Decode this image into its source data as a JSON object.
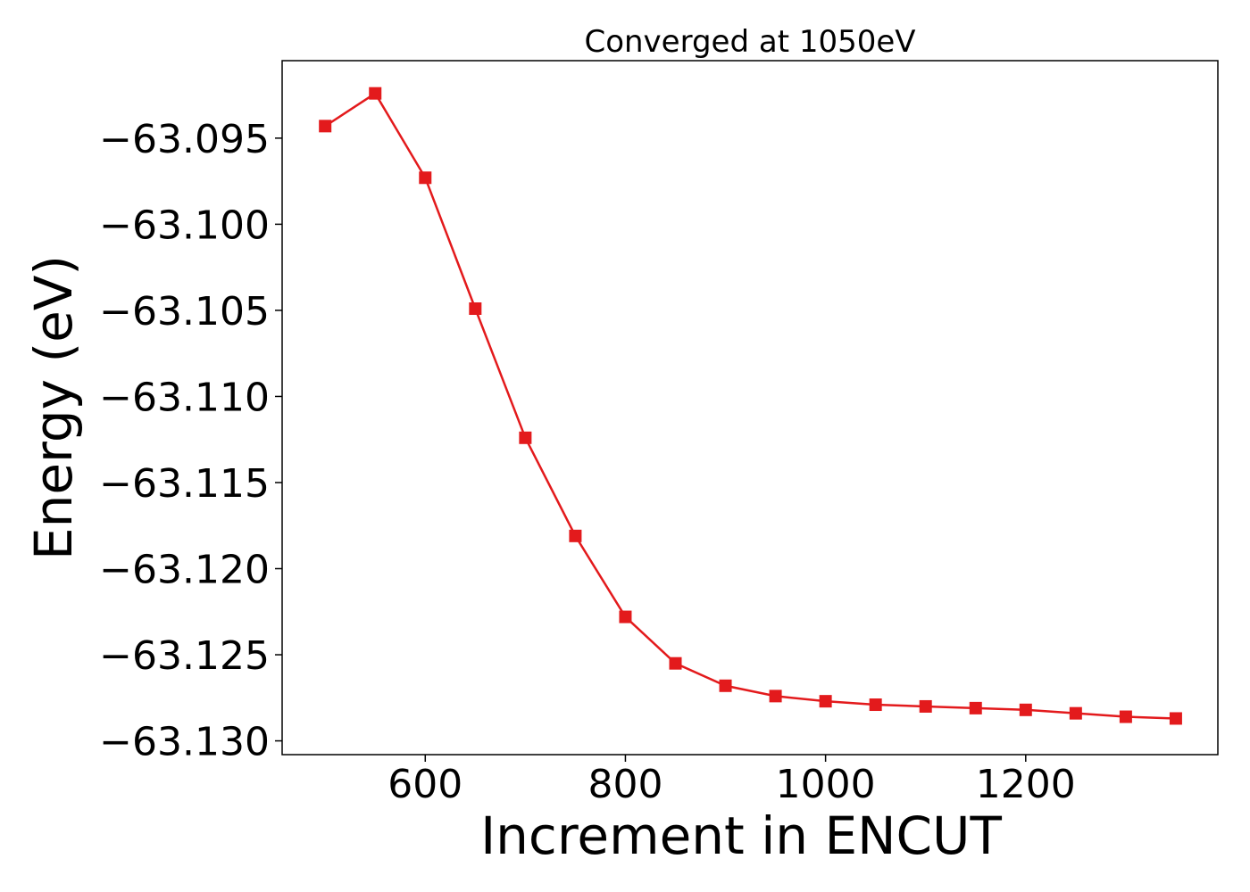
{
  "chart_data": {
    "type": "line",
    "title": "Converged at 1050eV",
    "xlabel": "Increment in ENCUT",
    "ylabel": "Energy (eV)",
    "xlim": [
      457,
      1392
    ],
    "ylim": [
      -63.1308,
      -63.0905
    ],
    "xticks": [
      600,
      800,
      1000,
      1200
    ],
    "xtick_labels": [
      "600",
      "800",
      "1000",
      "1200"
    ],
    "yticks": [
      -63.095,
      -63.1,
      -63.105,
      -63.11,
      -63.115,
      -63.12,
      -63.125,
      -63.13
    ],
    "ytick_labels": [
      "−63.095",
      "−63.100",
      "−63.105",
      "−63.110",
      "−63.115",
      "−63.120",
      "−63.125",
      "−63.130"
    ],
    "grid": false,
    "series": [
      {
        "color": "#e31a1c",
        "marker": "square",
        "x": [
          500,
          550,
          600,
          650,
          700,
          750,
          800,
          850,
          900,
          950,
          1000,
          1050,
          1100,
          1150,
          1200,
          1250,
          1300,
          1350
        ],
        "y": [
          -63.0943,
          -63.0924,
          -63.0973,
          -63.1049,
          -63.1124,
          -63.1181,
          -63.1228,
          -63.1255,
          -63.1268,
          -63.1274,
          -63.1277,
          -63.1279,
          -63.128,
          -63.1281,
          -63.1282,
          -63.1284,
          -63.1286,
          -63.1287
        ]
      }
    ]
  }
}
